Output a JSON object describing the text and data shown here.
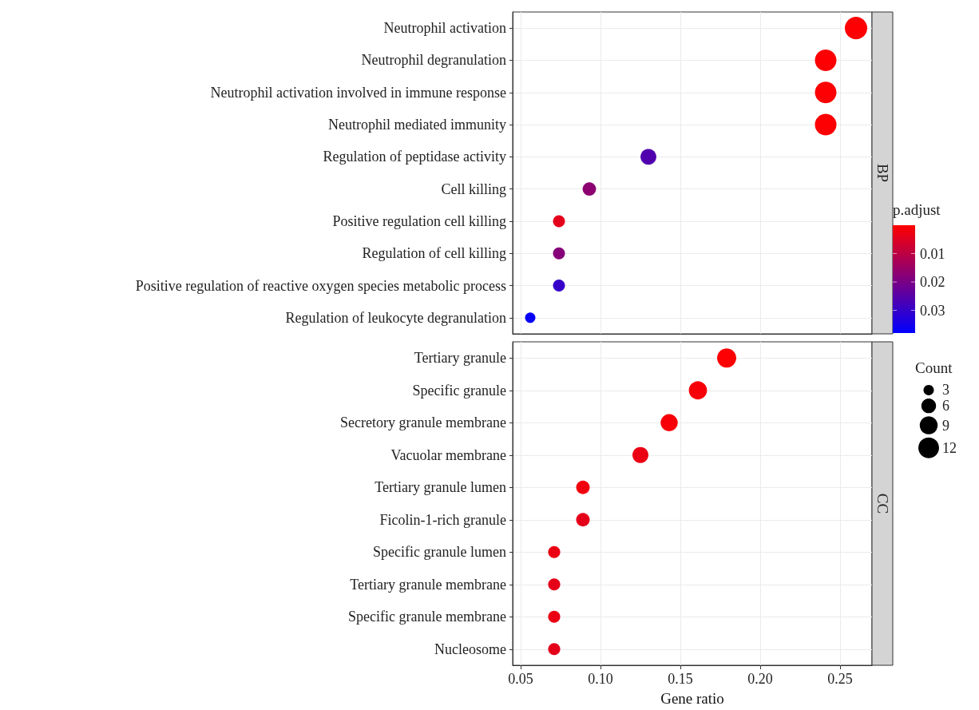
{
  "chart_data": [
    {
      "type": "bubble",
      "orientation": "horizontal",
      "annotations": [
        "BP"
      ],
      "categories": [
        "Neutrophil activation",
        "Neutrophil degranulation",
        "Neutrophil activation involved in immune response",
        "Neutrophil mediated immunity",
        "Regulation of peptidase activity",
        "Cell killing",
        "Positive regulation cell killing",
        "Regulation of cell killing",
        "Positive regulation of reactive oxygen species metabolic process",
        "Regulation of leukocyte degranulation"
      ],
      "values": [
        0.26,
        0.241,
        0.241,
        0.241,
        0.13,
        0.093,
        0.074,
        0.074,
        0.074,
        0.056
      ],
      "sizes": [
        14,
        13,
        13,
        13,
        7,
        5,
        4,
        4,
        4,
        3
      ],
      "cvalues": [
        0.0005,
        0.0005,
        0.0005,
        0.0005,
        0.026,
        0.017,
        0.004,
        0.018,
        0.03,
        0.037
      ],
      "xlim": [
        0.045,
        0.27
      ],
      "xticks": [
        0.05,
        0.1,
        0.15,
        0.2,
        0.25
      ],
      "tick_labels": "y",
      "grid": true,
      "clabel": "p.adjust",
      "clim": [
        0,
        0.038
      ],
      "cticks": [
        0.01,
        0.02,
        0.03
      ],
      "legend_title": "Count",
      "size_legend": [
        3,
        6,
        9,
        12
      ]
    },
    {
      "type": "bubble",
      "orientation": "horizontal",
      "annotations": [
        "CC"
      ],
      "xlabel": "Gene ratio",
      "categories": [
        "Tertiary granule",
        "Specific granule",
        "Secretory granule membrane",
        "Vacuolar membrane",
        "Tertiary granule lumen",
        "Ficolin-1-rich granule",
        "Specific granule lumen",
        "Tertiary granule membrane",
        "Specific granule membrane",
        "Nucleosome"
      ],
      "values": [
        0.179,
        0.161,
        0.143,
        0.125,
        0.089,
        0.089,
        0.071,
        0.071,
        0.071,
        0.071
      ],
      "sizes": [
        1,
        0.9,
        0.8,
        0.7,
        0.5,
        0.5,
        0.4,
        0.4,
        0.4,
        0.4
      ],
      "colors": [
        "#fc0003",
        "#f80007",
        "#f80007",
        "#eb0014",
        "#f2000d",
        "#e5001a",
        "#eb0014",
        "#e5001a",
        "#eb0014",
        "#e5001a"
      ],
      "xlim": [
        0.045,
        0.27
      ],
      "xticks": [
        {
          "value": 0.05,
          "label": "0.05"
        },
        {
          "value": 0.1,
          "label": "0.10"
        },
        {
          "value": 0.15,
          "label": "0.15"
        },
        {
          "value": 0.2,
          "label": "0.20"
        },
        {
          "value": 0.25,
          "label": "0.25"
        }
      ],
      "grid": true
    }
  ]
}
